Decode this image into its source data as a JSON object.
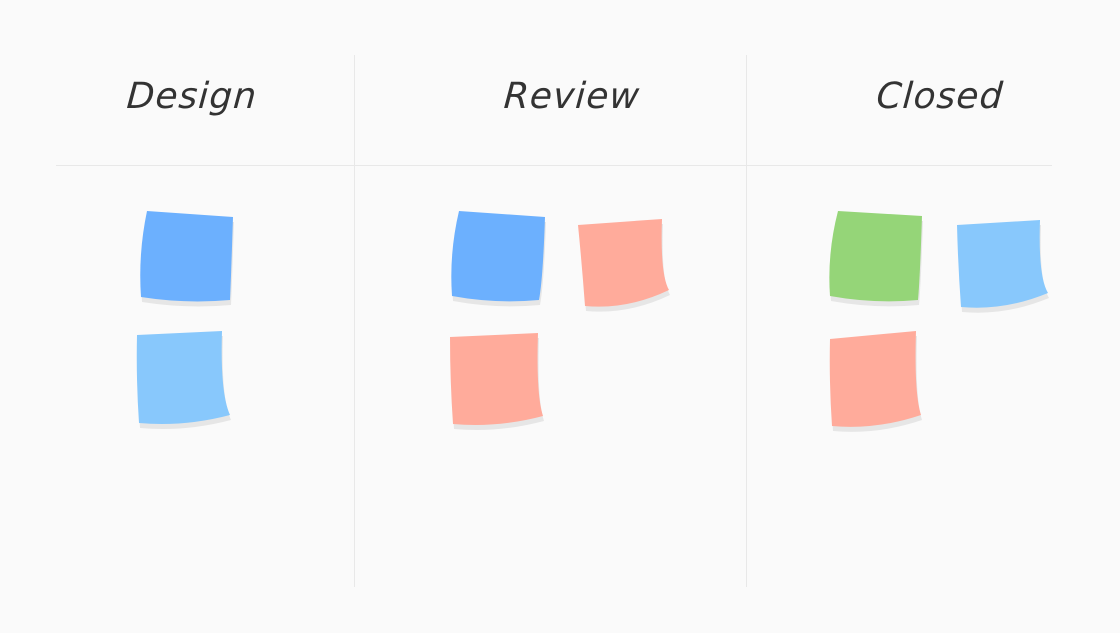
{
  "columns": [
    {
      "title": "Design",
      "notes": [
        "blue",
        "light-blue"
      ]
    },
    {
      "title": "Review",
      "notes": [
        "blue",
        "salmon",
        "salmon"
      ]
    },
    {
      "title": "Closed",
      "notes": [
        "green",
        "light-blue",
        "salmon"
      ]
    }
  ],
  "colors": {
    "blue": "#6cb0fe",
    "light-blue": "#88c8fc",
    "salmon": "#ffab9b",
    "green": "#95d578",
    "background": "#fafafa",
    "divider": "#e8e8e8"
  }
}
